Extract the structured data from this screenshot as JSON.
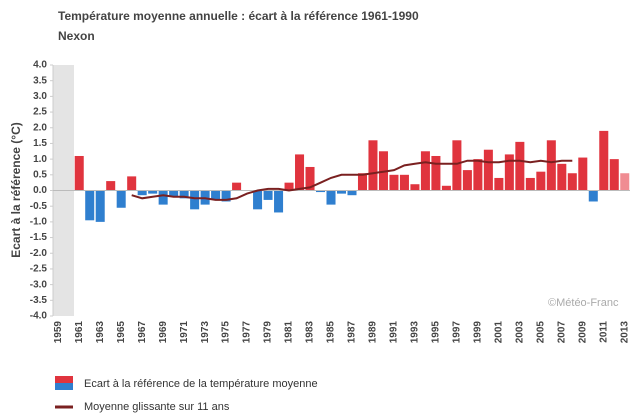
{
  "chart_data": {
    "type": "bar",
    "title": "Température moyenne annuelle : écart à la référence 1961-1990",
    "subtitle": "Nexon",
    "y_label": "Ecart à la référence (°C)",
    "watermark": "©Météo-Franc",
    "categories": [
      "1959",
      null,
      "1961",
      null,
      "1963",
      null,
      "1965",
      null,
      "1967",
      null,
      "1969",
      null,
      "1971",
      null,
      "1973",
      null,
      "1975",
      null,
      "1977",
      null,
      "1979",
      null,
      "1981",
      null,
      "1983",
      null,
      "1985",
      null,
      "1987",
      null,
      "1989",
      null,
      "1991",
      null,
      "1993",
      null,
      "1995",
      null,
      "1997",
      null,
      "1999",
      null,
      "2001",
      null,
      "2003",
      null,
      "2005",
      null,
      "2007",
      null,
      "2009",
      null,
      "2011",
      null,
      "2013"
    ],
    "series": [
      {
        "name": "Ecart à la référence de la température moyenne",
        "type": "bar",
        "values": [
          null,
          null,
          1.1,
          -0.95,
          -1.0,
          0.3,
          -0.55,
          0.45,
          -0.15,
          -0.1,
          -0.45,
          -0.2,
          -0.25,
          -0.6,
          -0.45,
          -0.3,
          -0.35,
          0.25,
          0.0,
          -0.6,
          -0.3,
          -0.7,
          0.25,
          1.15,
          0.75,
          -0.05,
          -0.45,
          -0.1,
          -0.15,
          0.55,
          1.6,
          1.25,
          0.5,
          0.5,
          0.2,
          1.25,
          1.1,
          0.15,
          1.6,
          0.65,
          1.0,
          1.3,
          0.4,
          1.15,
          1.55,
          0.4,
          0.6,
          1.6,
          0.85,
          0.55,
          1.05,
          -0.35,
          1.9,
          1.0,
          0.55
        ],
        "colors": [
          null,
          null,
          "#e0343e",
          "#2f7fcf",
          "#2f7fcf",
          "#e0343e",
          "#2f7fcf",
          "#e0343e",
          "#2f7fcf",
          "#2f7fcf",
          "#2f7fcf",
          "#2f7fcf",
          "#2f7fcf",
          "#2f7fcf",
          "#2f7fcf",
          "#2f7fcf",
          "#2f7fcf",
          "#e0343e",
          "#e0343e",
          "#2f7fcf",
          "#2f7fcf",
          "#2f7fcf",
          "#e0343e",
          "#e0343e",
          "#e0343e",
          "#2f7fcf",
          "#2f7fcf",
          "#2f7fcf",
          "#2f7fcf",
          "#e0343e",
          "#e0343e",
          "#e0343e",
          "#e0343e",
          "#e0343e",
          "#e0343e",
          "#e0343e",
          "#e0343e",
          "#e0343e",
          "#e0343e",
          "#e0343e",
          "#e0343e",
          "#e0343e",
          "#e0343e",
          "#e0343e",
          "#e0343e",
          "#e0343e",
          "#e0343e",
          "#e0343e",
          "#e0343e",
          "#e0343e",
          "#e0343e",
          "#2f7fcf",
          "#e0343e",
          "#e0343e",
          "#f08c92"
        ]
      },
      {
        "name": "Moyenne glissante sur 11 ans",
        "type": "line",
        "color": "#7a2020",
        "values": [
          null,
          null,
          null,
          null,
          null,
          null,
          null,
          -0.15,
          -0.25,
          -0.2,
          -0.15,
          -0.2,
          -0.2,
          -0.25,
          -0.25,
          -0.3,
          -0.3,
          -0.25,
          -0.1,
          0.0,
          0.05,
          0.05,
          0.0,
          0.05,
          0.1,
          0.25,
          0.4,
          0.5,
          0.5,
          0.5,
          0.55,
          0.6,
          0.65,
          0.8,
          0.85,
          0.9,
          0.85,
          0.85,
          0.85,
          0.95,
          0.95,
          0.9,
          0.9,
          0.95,
          0.95,
          0.9,
          0.95,
          0.9,
          0.95,
          0.95,
          null,
          null,
          null,
          null,
          null
        ]
      }
    ],
    "ylim": [
      -4,
      4
    ],
    "yticks": [
      {
        "value": 4,
        "label": "4.0"
      },
      {
        "value": 3.5,
        "label": "3.5"
      },
      {
        "value": 3,
        "label": "3.0"
      },
      {
        "value": 2.5,
        "label": "2.5"
      },
      {
        "value": 2,
        "label": "2.0"
      },
      {
        "value": 1.5,
        "label": "1.5"
      },
      {
        "value": 1,
        "label": "1.0"
      },
      {
        "value": 0.5,
        "label": "0.5"
      },
      {
        "value": 0,
        "label": "0.0"
      },
      {
        "value": -0.5,
        "label": "-0.5"
      },
      {
        "value": -1,
        "label": "-1.0"
      },
      {
        "value": -1.5,
        "label": "-1.5"
      },
      {
        "value": -2,
        "label": "-2.0"
      },
      {
        "value": -2.5,
        "label": "-2.5"
      },
      {
        "value": -3,
        "label": "-3.0"
      },
      {
        "value": -3.5,
        "label": "-3.5"
      },
      {
        "value": -4,
        "label": "-4.0"
      }
    ],
    "grid": false
  }
}
